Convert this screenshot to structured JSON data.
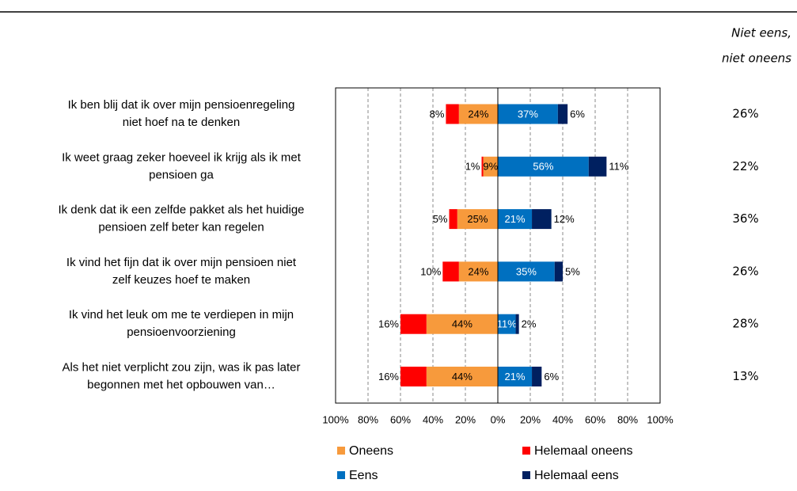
{
  "chart_data": {
    "type": "diverging-bar",
    "categories": [
      "Ik ben blij dat ik over mijn pensioenregeling\nniet hoef na te denken",
      "Ik weet graag zeker hoeveel ik krijg als ik met\npensioen ga",
      "Ik denk dat ik een zelfde pakket als het huidige\npensioen zelf beter kan regelen",
      "Ik vind het fijn dat ik over mijn pensioen niet\nzelf keuzes hoef te maken",
      "Ik vind het leuk om me te verdiepen in mijn\npensioenvoorziening",
      "Als het niet verplicht zou zijn, was ik pas later\nbegonnen met het opbouwen van…"
    ],
    "series": [
      {
        "name": "Oneens",
        "color": "#f79a3c",
        "values": [
          -24,
          -9,
          -25,
          -24,
          -44,
          -44
        ],
        "value_labels": [
          "24%",
          "9%",
          "25%",
          "24%",
          "44%",
          "44%"
        ]
      },
      {
        "name": "Helemaal oneens",
        "color": "#ff0000",
        "values": [
          -8,
          -1,
          -5,
          -10,
          -16,
          -16
        ],
        "value_labels": [
          "8%",
          "1%",
          "5%",
          "10%",
          "16%",
          "16%"
        ]
      },
      {
        "name": "Eens",
        "color": "#0070c0",
        "values": [
          37,
          56,
          21,
          35,
          11,
          21
        ],
        "value_labels": [
          "37%",
          "56%",
          "21%",
          "35%",
          "11%",
          "21%"
        ]
      },
      {
        "name": "Helemaal eens",
        "color": "#002060",
        "values": [
          6,
          11,
          12,
          5,
          2,
          6
        ],
        "value_labels": [
          "6%",
          "11%",
          "12%",
          "5%",
          "2%",
          "6%"
        ]
      }
    ],
    "xlim": [
      -100,
      100
    ],
    "xticks": [
      {
        "value": -100,
        "label": "100%"
      },
      {
        "value": -80,
        "label": "80%"
      },
      {
        "value": -60,
        "label": "60%"
      },
      {
        "value": -40,
        "label": "40%"
      },
      {
        "value": -20,
        "label": "20%"
      },
      {
        "value": 0,
        "label": "0%"
      },
      {
        "value": 20,
        "label": "20%"
      },
      {
        "value": 40,
        "label": "40%"
      },
      {
        "value": 60,
        "label": "60%"
      },
      {
        "value": 80,
        "label": "80%"
      },
      {
        "value": 100,
        "label": "100%"
      }
    ],
    "grid": true,
    "neutral": {
      "title": [
        "Niet eens,",
        "niet oneens"
      ],
      "values": [
        26,
        22,
        36,
        26,
        28,
        13
      ],
      "value_labels": [
        "26%",
        "22%",
        "36%",
        "26%",
        "28%",
        "13%"
      ]
    }
  }
}
